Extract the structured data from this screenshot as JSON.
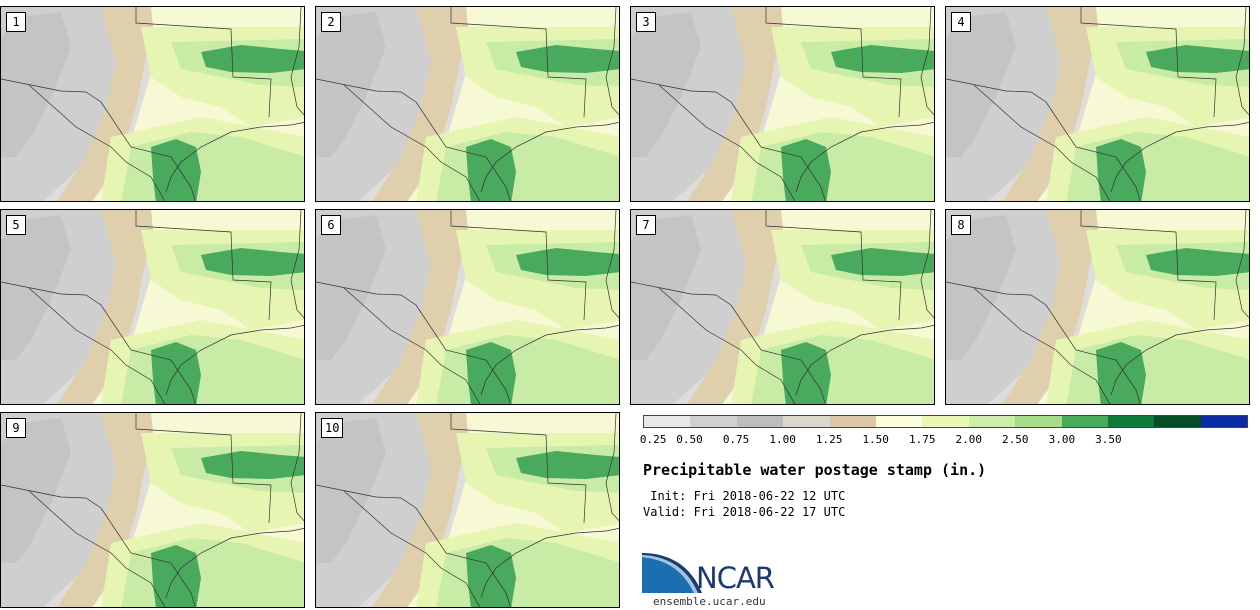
{
  "panels": [
    {
      "label": "1"
    },
    {
      "label": "2"
    },
    {
      "label": "3"
    },
    {
      "label": "4"
    },
    {
      "label": "5"
    },
    {
      "label": "6"
    },
    {
      "label": "7"
    },
    {
      "label": "8"
    },
    {
      "label": "9"
    },
    {
      "label": "10"
    }
  ],
  "colorbar": {
    "ticks": [
      "0.25",
      "0.50",
      "0.75",
      "1.00",
      "1.25",
      "1.50",
      "1.75",
      "2.00",
      "2.50",
      "3.00",
      "3.50"
    ],
    "colors": [
      "#e8e8e8",
      "#d0d0d0",
      "#bdbdbd",
      "#dcd7cc",
      "#dcc8a6",
      "#fdfde0",
      "#eaf7b4",
      "#cceeaa",
      "#a5dc8a",
      "#49a95c",
      "#0e7a3c",
      "#054d26",
      "#0a2aa8"
    ]
  },
  "title": "Precipitable water postage stamp (in.)",
  "init": " Init: Fri 2018-06-22 12 UTC",
  "valid": "Valid: Fri 2018-06-22 17 UTC",
  "logo": {
    "text": "NCAR",
    "url": "ensemble.ucar.edu",
    "color": "#1a3a70"
  }
}
